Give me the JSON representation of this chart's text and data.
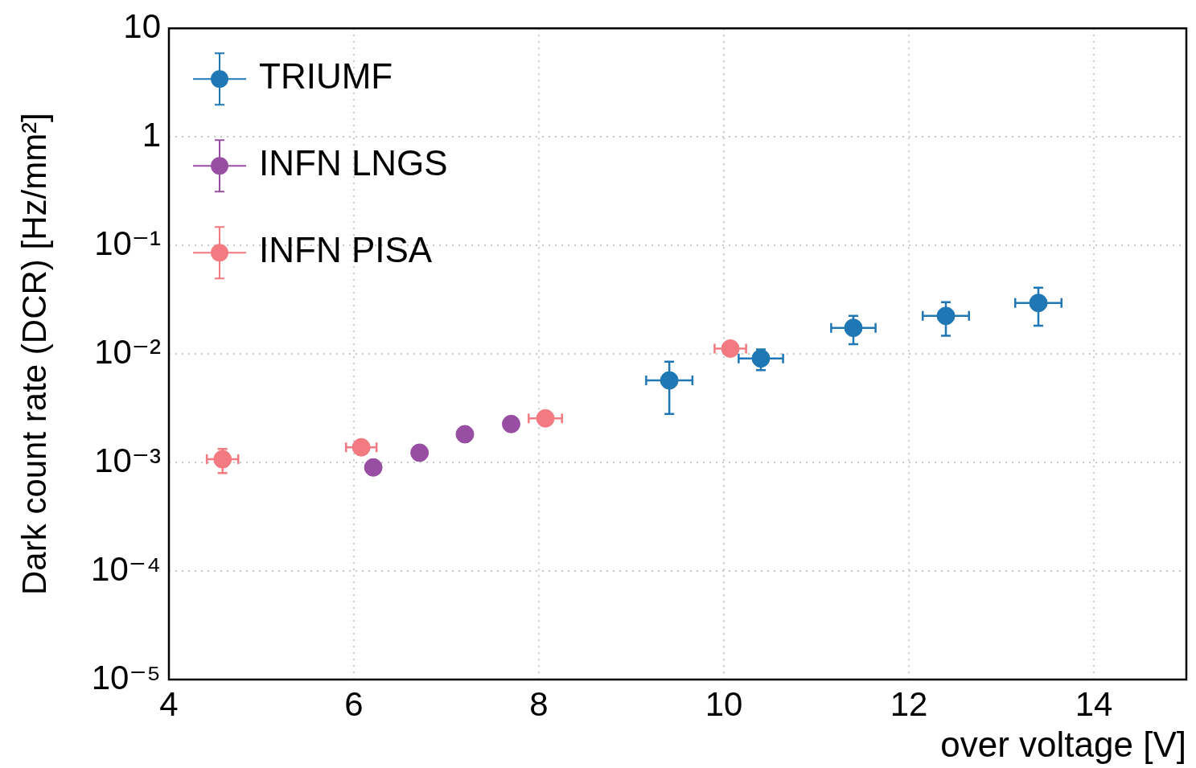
{
  "chart_data": {
    "type": "scatter",
    "xlabel": "over voltage [V]",
    "ylabel": "Dark count rate (DCR) [Hz/mm²]",
    "xlim": [
      4,
      15
    ],
    "xticks": [
      4,
      6,
      8,
      10,
      12,
      14
    ],
    "ylim": [
      1e-05,
      10
    ],
    "yticks": [
      {
        "value": 1e-05,
        "label": "10⁻⁵"
      },
      {
        "value": 0.0001,
        "label": "10⁻⁴"
      },
      {
        "value": 0.001,
        "label": "10⁻³"
      },
      {
        "value": 0.01,
        "label": "10⁻²"
      },
      {
        "value": 0.1,
        "label": "10⁻¹"
      },
      1,
      10
    ],
    "log": "y",
    "grid": true,
    "legend": "top left",
    "marker": "circle",
    "series": [
      {
        "name": "TRIUMF",
        "color": "#1f77b4",
        "x": [
          9.41,
          10.4,
          11.4,
          12.4,
          13.4
        ],
        "values": [
          0.0057,
          0.0091,
          0.0174,
          0.0224,
          0.0295
        ],
        "errors": [
          [
            0.0028,
            0.0085
          ],
          [
            0.0071,
            0.011
          ],
          [
            0.0123,
            0.0224
          ],
          [
            0.0147,
            0.03
          ],
          [
            0.0182,
            0.0407
          ]
        ],
        "xerrors": [
          0.25,
          0.24,
          0.24,
          0.25,
          0.25
        ]
      },
      {
        "name": "INFN LNGS",
        "color": "#984ea3",
        "x": [
          6.21,
          6.71,
          7.2,
          7.7
        ],
        "values": [
          0.0009,
          0.00123,
          0.00182,
          0.00226
        ]
      },
      {
        "name": "INFN PISA",
        "color": "#f37a80",
        "x": [
          4.58,
          6.08,
          8.07,
          10.07
        ],
        "values": [
          0.00107,
          0.00138,
          0.00255,
          0.0112
        ],
        "errors": [
          [
            0.0008,
            0.00133
          ],
          null,
          null,
          null
        ],
        "xerrors": [
          0.17,
          0.165,
          0.18,
          0.17
        ]
      }
    ]
  }
}
